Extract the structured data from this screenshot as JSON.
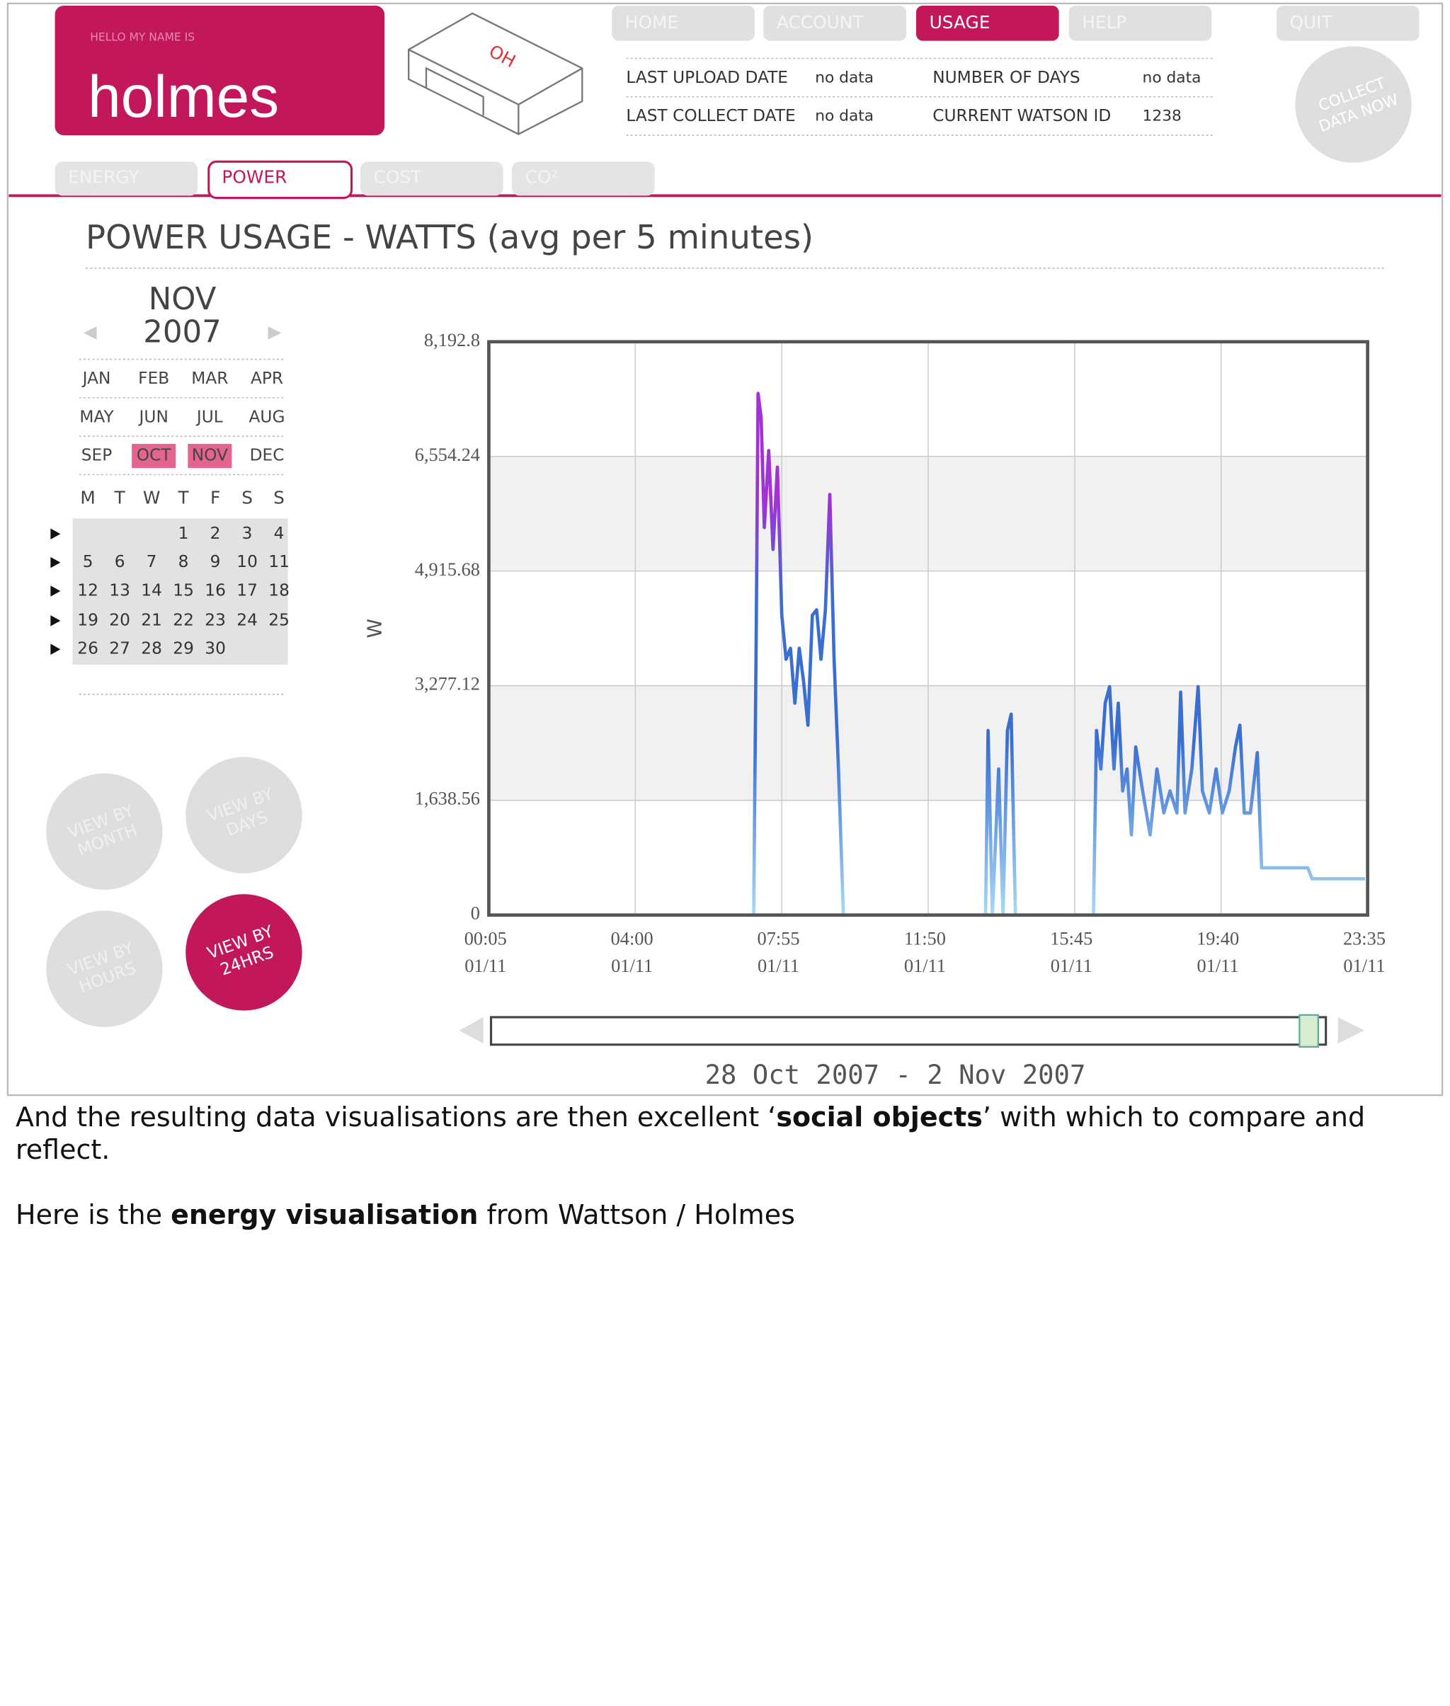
{
  "header": {
    "greeting": "HELLO MY NAME IS",
    "name": "holmes",
    "device_label": "OH"
  },
  "nav": [
    "HOME",
    "ACCOUNT",
    "USAGE",
    "HELP",
    "QUIT"
  ],
  "nav_active": 2,
  "info": [
    {
      "label": "LAST UPLOAD DATE",
      "value": "no data"
    },
    {
      "label": "LAST COLLECT DATE",
      "value": "no data"
    },
    {
      "label": "NUMBER OF DAYS",
      "value": "no data"
    },
    {
      "label": "CURRENT WATSON ID",
      "value": "1238"
    }
  ],
  "collect_button": [
    "COLLECT",
    "DATA NOW"
  ],
  "tabs": [
    "ENERGY",
    "POWER",
    "COST",
    "CO²"
  ],
  "tab_active": 1,
  "calendar": {
    "month": "NOV",
    "year": "2007",
    "months": [
      "JAN",
      "FEB",
      "MAR",
      "APR",
      "MAY",
      "JUN",
      "JUL",
      "AUG",
      "SEP",
      "OCT",
      "NOV",
      "DEC"
    ],
    "highlighted": [
      9,
      10
    ],
    "weekdays": [
      "M",
      "T",
      "W",
      "T",
      "F",
      "S",
      "S"
    ],
    "weeks": [
      [
        null,
        null,
        null,
        1,
        2,
        3,
        4
      ],
      [
        5,
        6,
        7,
        8,
        9,
        10,
        11
      ],
      [
        12,
        13,
        14,
        15,
        16,
        17,
        18
      ],
      [
        19,
        20,
        21,
        22,
        23,
        24,
        25
      ],
      [
        26,
        27,
        28,
        29,
        30
      ]
    ]
  },
  "view_buttons": [
    [
      "VIEW BY",
      "MONTH"
    ],
    [
      "VIEW BY",
      "DAYS"
    ],
    [
      "VIEW BY",
      "HOURS"
    ],
    [
      "VIEW BY",
      "24HRS"
    ]
  ],
  "view_active": 3,
  "chart_data": {
    "type": "line",
    "title": "POWER USAGE - WATTS (avg per 5 minutes)",
    "y_label": "W",
    "xlim": [
      5,
      1415
    ],
    "xticks": [
      {
        "value": 5,
        "label": "00:05"
      },
      {
        "value": 240,
        "label": "04:00"
      },
      {
        "value": 475,
        "label": "07:55"
      },
      {
        "value": 710,
        "label": "11:50"
      },
      {
        "value": 945,
        "label": "15:45"
      },
      {
        "value": 1180,
        "label": "19:40"
      },
      {
        "value": 1415,
        "label": "23:35"
      }
    ],
    "xtick_dates": [
      "01/11",
      "01/11",
      "01/11",
      "01/11",
      "01/11",
      "01/11",
      "01/11"
    ],
    "ylim": [
      0,
      8192.8
    ],
    "yticks": [
      0,
      {
        "value": 1638.56,
        "label": "1,638.56"
      },
      {
        "value": 3277.12,
        "label": "3,277.12"
      },
      {
        "value": 4915.68,
        "label": "4,915.68"
      },
      {
        "value": 6554.24,
        "label": "6,554.24"
      },
      {
        "value": 8192.8,
        "label": "8,192.8"
      }
    ],
    "grid": true,
    "series": [
      {
        "color": "#3a6fd0",
        "peak_color": "#a232d4",
        "base_color": "#a8d8f4",
        "x": [
          430,
          434,
          437,
          442,
          447,
          454,
          461,
          468,
          475,
          482,
          489,
          496,
          503,
          510,
          517,
          524,
          531,
          538,
          545,
          552,
          559,
          566,
          574,
          802,
          806,
          813,
          823,
          830,
          837,
          843,
          850,
          975,
          980,
          987,
          994,
          1001,
          1008,
          1015,
          1022,
          1029,
          1036,
          1043,
          1054,
          1066,
          1077,
          1088,
          1098,
          1109,
          1115,
          1122,
          1133,
          1143,
          1150,
          1161,
          1172,
          1182,
          1193,
          1203,
          1210,
          1217,
          1227,
          1238,
          1245,
          1319,
          1326,
          1411
        ],
        "values": [
          0,
          3970,
          7453,
          7108,
          5539,
          6637,
          5225,
          6401,
          4283,
          3656,
          3813,
          3028,
          3813,
          3342,
          2714,
          4283,
          4362,
          3656,
          4362,
          6009,
          3656,
          2087,
          0,
          0,
          2636,
          0,
          2087,
          0,
          2636,
          2871,
          0,
          0,
          2636,
          2087,
          3028,
          3264,
          2087,
          3028,
          1773,
          2087,
          1145,
          2401,
          1773,
          1145,
          2087,
          1459,
          1773,
          1459,
          3185,
          1459,
          2087,
          3264,
          1773,
          1459,
          2087,
          1459,
          1773,
          2401,
          2714,
          1459,
          1459,
          2322,
          675,
          675,
          518,
          518
        ]
      }
    ]
  },
  "slider": {
    "label": "28 Oct 2007 - 2 Nov 2007"
  },
  "caption": {
    "p1": [
      "And the resulting data visualisations are then excellent ‘",
      "social objects",
      "’ with which to compare and reflect."
    ],
    "p2": [
      "Here is the ",
      "energy visualisation",
      " from Wattson / Holmes"
    ]
  }
}
